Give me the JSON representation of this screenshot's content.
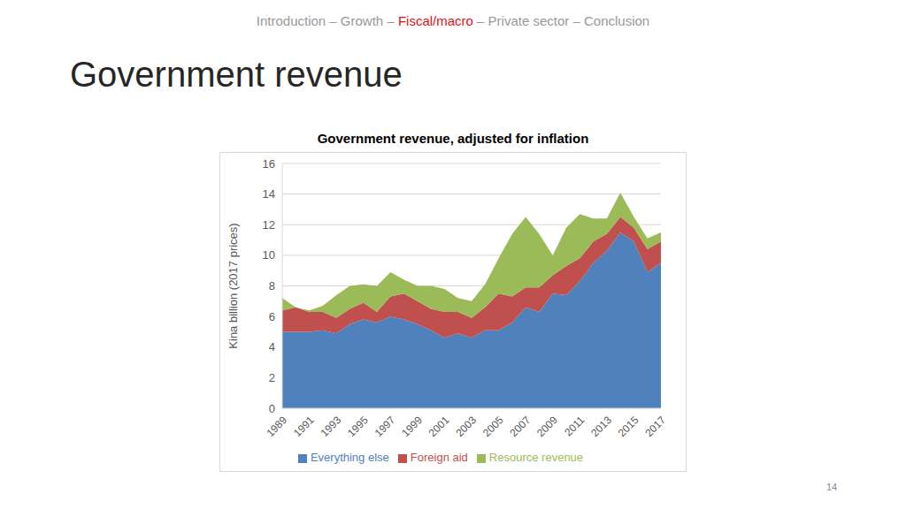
{
  "slide": {
    "nav": [
      "Introduction",
      "Growth",
      "Fiscal/macro",
      "Private sector",
      "Conclusion"
    ],
    "nav_separator": "–",
    "nav_active": "Fiscal/macro",
    "heading": "Government revenue",
    "page": 14
  },
  "chart_data": {
    "type": "area",
    "stacked": true,
    "title": "Government revenue, adjusted for inflation",
    "y_label": "Kina billion (2017 prices)",
    "categories": [
      "1989",
      null,
      "1991",
      null,
      "1993",
      null,
      "1995",
      null,
      "1997",
      null,
      "1999",
      null,
      "2001",
      null,
      "2003",
      null,
      "2005",
      null,
      "2007",
      null,
      "2009",
      null,
      "2011",
      null,
      "2013",
      null,
      "2015",
      null,
      "2017"
    ],
    "series": [
      {
        "name": "Everything else",
        "color": "#4f81bd",
        "values": [
          5.0,
          5.0,
          5.0,
          5.1,
          4.9,
          5.5,
          5.8,
          5.6,
          6.0,
          5.8,
          5.5,
          5.1,
          4.6,
          4.9,
          4.6,
          5.1,
          5.1,
          5.6,
          6.6,
          6.3,
          7.5,
          7.4,
          8.3,
          9.5,
          10.3,
          11.5,
          10.9,
          8.9,
          9.5
        ]
      },
      {
        "name": "Foreign aid",
        "color": "#c0504d",
        "values": [
          1.4,
          1.6,
          1.3,
          1.2,
          1.0,
          1.0,
          1.1,
          0.7,
          1.3,
          1.7,
          1.5,
          1.4,
          1.7,
          1.4,
          1.3,
          1.5,
          2.4,
          1.7,
          1.3,
          1.6,
          1.2,
          1.9,
          1.5,
          1.4,
          1.1,
          1.0,
          0.9,
          1.5,
          1.4
        ]
      },
      {
        "name": "Resource revenue",
        "color": "#9bbb59",
        "values": [
          0.8,
          0.0,
          0.1,
          0.4,
          1.5,
          1.5,
          1.2,
          1.7,
          1.6,
          0.9,
          1.0,
          1.5,
          1.5,
          0.9,
          1.1,
          1.5,
          2.3,
          4.1,
          4.6,
          3.5,
          1.3,
          2.5,
          2.9,
          1.5,
          1.0,
          1.6,
          0.7,
          0.7,
          0.6
        ]
      }
    ],
    "ylim": [
      0,
      16
    ],
    "yticks": [
      0,
      2,
      4,
      6,
      8,
      10,
      12,
      14,
      16
    ],
    "grid": true,
    "legend": "bottom"
  }
}
